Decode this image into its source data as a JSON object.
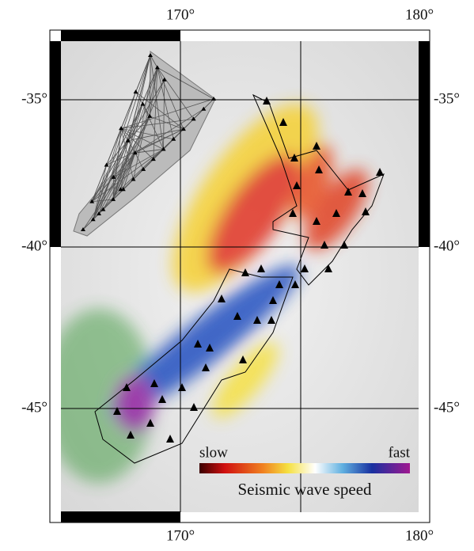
{
  "map": {
    "top_labels": [
      "170°",
      "180°"
    ],
    "bottom_labels": [
      "170°",
      "180°"
    ],
    "left_labels": [
      "-35°",
      "-40°",
      "-45°"
    ],
    "right_labels": [
      "-35°",
      "-40°",
      "-45°"
    ],
    "colorbar": {
      "low_label": "slow",
      "high_label": "fast",
      "title": "Seismic wave speed"
    }
  }
}
